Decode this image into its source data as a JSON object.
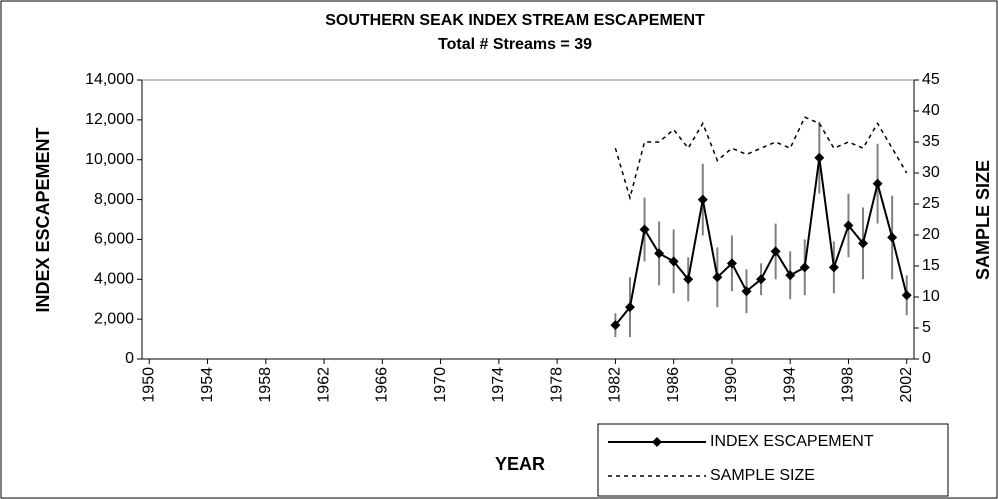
{
  "chart_data": {
    "type": "line",
    "title": "SOUTHERN SEAK INDEX STREAM ESCAPEMENT",
    "subtitle": "Total # Streams = 39",
    "xlabel": "YEAR",
    "ylabel": "INDEX ESCAPEMENT",
    "y2label": "SAMPLE SIZE",
    "x": [
      1982,
      1983,
      1984,
      1985,
      1986,
      1987,
      1988,
      1989,
      1990,
      1991,
      1992,
      1993,
      1994,
      1995,
      1996,
      1997,
      1998,
      1999,
      2000,
      2001,
      2002
    ],
    "series": [
      {
        "name": "INDEX ESCAPEMENT",
        "color": "#000000",
        "error_color": "#808080",
        "values": [
          1700,
          2600,
          6500,
          5300,
          4900,
          4000,
          8000,
          4100,
          4800,
          3400,
          4000,
          5400,
          4200,
          4600,
          10100,
          4600,
          6700,
          5800,
          8800,
          6100,
          3200
        ],
        "errors": [
          600,
          1500,
          1600,
          1600,
          1600,
          1100,
          1800,
          1500,
          1400,
          1100,
          800,
          1400,
          1200,
          1400,
          1800,
          1300,
          1600,
          1800,
          2000,
          2100,
          1000
        ]
      },
      {
        "name": "SAMPLE SIZE",
        "color": "#000000",
        "axis": "y2",
        "dashed": true,
        "values": [
          34,
          26,
          35,
          35,
          37,
          34,
          38,
          32,
          34,
          33,
          34,
          35,
          34,
          39,
          38,
          34,
          35,
          34,
          38,
          34,
          30
        ]
      }
    ],
    "xlim": [
      1949.5,
      2002.5
    ],
    "xticks": [
      1950,
      1954,
      1958,
      1962,
      1966,
      1970,
      1974,
      1978,
      1982,
      1986,
      1990,
      1994,
      1998,
      2002
    ],
    "ylim": [
      0,
      14000
    ],
    "yticks": [
      0,
      {
        "value": 2000,
        "label": "2,000"
      },
      {
        "value": 4000,
        "label": "4,000"
      },
      {
        "value": 6000,
        "label": "6,000"
      },
      {
        "value": 8000,
        "label": "8,000"
      },
      {
        "value": 10000,
        "label": "10,000"
      },
      {
        "value": 12000,
        "label": "12,000"
      },
      {
        "value": 14000,
        "label": "14,000"
      }
    ],
    "y2lim": [
      0,
      45
    ],
    "y2ticks": [
      0,
      5,
      10,
      15,
      20,
      25,
      30,
      35,
      40,
      45
    ],
    "legend": "bottom-right"
  }
}
